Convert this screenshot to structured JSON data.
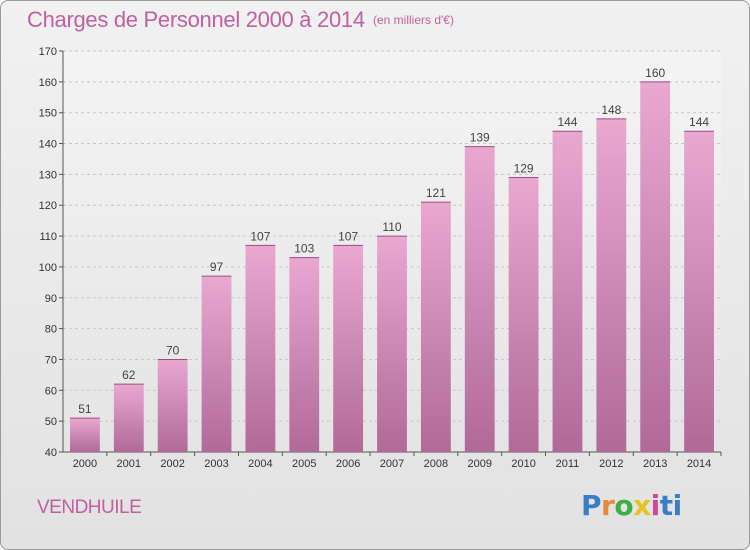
{
  "chart_data": {
    "type": "bar",
    "title": "Charges de Personnel 2000 à 2014",
    "subtitle": "(en milliers d'€)",
    "categories": [
      "2000",
      "2001",
      "2002",
      "2003",
      "2004",
      "2005",
      "2006",
      "2007",
      "2008",
      "2009",
      "2010",
      "2011",
      "2012",
      "2013",
      "2014"
    ],
    "values": [
      51,
      62,
      70,
      97,
      107,
      103,
      107,
      110,
      121,
      139,
      129,
      144,
      148,
      160,
      144
    ],
    "ylim": [
      40,
      170
    ],
    "yticks": [
      40,
      50,
      60,
      70,
      80,
      90,
      100,
      110,
      120,
      130,
      140,
      150,
      160,
      170
    ],
    "grid": true,
    "bar_color_top": "#e8a8d0",
    "bar_color_bottom": "#b06a98"
  },
  "commune": "VENDHUILE",
  "brand": [
    "P",
    "r",
    "o",
    "x",
    "i",
    "ti"
  ]
}
